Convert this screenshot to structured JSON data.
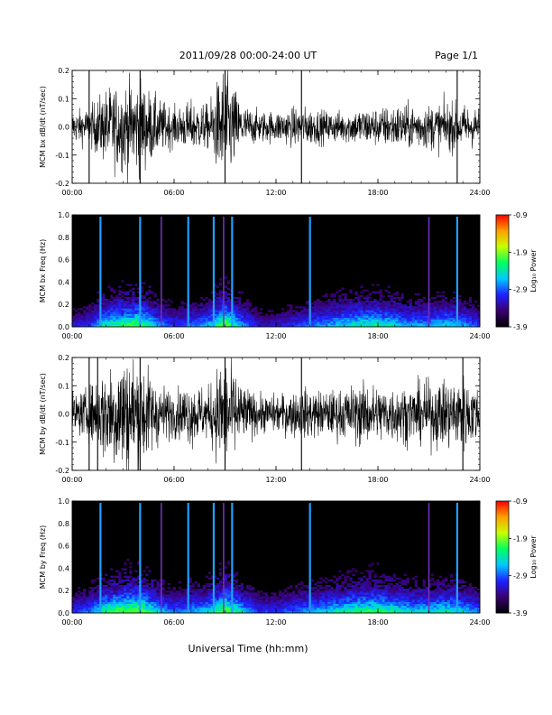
{
  "header": {
    "title": "2011/09/28  00:00-24:00 UT",
    "page": "Page 1/1"
  },
  "footer": {
    "xlabel": "Universal Time (hh:mm)"
  },
  "colorbar": {
    "label": "Log₁₀ Power",
    "ticks": [
      "-0.9",
      "-1.9",
      "-2.9",
      "-3.9"
    ],
    "range": [
      -3.9,
      -0.9
    ],
    "colors": [
      "#000000",
      "#3a0070",
      "#2020ff",
      "#00c8ff",
      "#00ff60",
      "#c8ff00",
      "#ffa000",
      "#ff0000"
    ]
  },
  "chart_data": [
    {
      "type": "line",
      "ylabel": "MCM bx dB/dt (nT/sec)",
      "ylim": [
        -0.2,
        0.2
      ],
      "yticks": [
        "0.2",
        "0.1",
        "0.0",
        "-0.1",
        "-0.2"
      ],
      "xlim": [
        "00:00",
        "24:00"
      ],
      "xticks": [
        "00:00",
        "06:00",
        "12:00",
        "18:00",
        "24:00"
      ],
      "series": [
        {
          "x": [
            "00:00",
            "01:00",
            "02:00",
            "03:00",
            "04:00",
            "05:00",
            "06:00",
            "07:00",
            "08:00",
            "09:00",
            "10:00",
            "11:00",
            "12:00",
            "13:00",
            "14:00",
            "15:00",
            "16:00",
            "17:00",
            "18:00",
            "19:00",
            "20:00",
            "21:00",
            "22:00",
            "23:00",
            "24:00"
          ],
          "amplitude": [
            0.05,
            0.06,
            0.12,
            0.14,
            0.15,
            0.09,
            0.06,
            0.08,
            0.07,
            0.2,
            0.07,
            0.05,
            0.05,
            0.06,
            0.06,
            0.05,
            0.05,
            0.06,
            0.06,
            0.07,
            0.07,
            0.07,
            0.08,
            0.07,
            0.06
          ]
        }
      ],
      "spikes": [
        "01:00",
        "04:00",
        "09:00",
        "13:30",
        "22:40"
      ],
      "grid": false
    },
    {
      "type": "heatmap",
      "ylabel": "MCM bx Freq (Hz)",
      "ylim": [
        0.0,
        1.0
      ],
      "yticks": [
        "1.0",
        "0.8",
        "0.6",
        "0.4",
        "0.2",
        "0.0"
      ],
      "xlim": [
        "00:00",
        "24:00"
      ],
      "xticks": [
        "00:00",
        "06:00",
        "12:00",
        "18:00",
        "24:00"
      ],
      "zlabel": "Log₁₀ Power",
      "zlim": [
        -3.9,
        -0.9
      ],
      "vertical_lines": [
        "01:40",
        "04:00",
        "05:15",
        "06:50",
        "08:20",
        "08:55",
        "09:25",
        "14:00",
        "21:00",
        "22:40"
      ],
      "activity": [
        0.2,
        0.25,
        0.45,
        0.5,
        0.55,
        0.35,
        0.25,
        0.3,
        0.35,
        0.6,
        0.35,
        0.2,
        0.2,
        0.25,
        0.3,
        0.35,
        0.4,
        0.45,
        0.45,
        0.4,
        0.35,
        0.35,
        0.4,
        0.35,
        0.25
      ]
    },
    {
      "type": "line",
      "ylabel": "MCM by dB/dt (nT/sec)",
      "ylim": [
        -0.2,
        0.2
      ],
      "yticks": [
        "0.2",
        "0.1",
        "0.0",
        "-0.1",
        "-0.2"
      ],
      "xlim": [
        "00:00",
        "24:00"
      ],
      "xticks": [
        "00:00",
        "06:00",
        "12:00",
        "18:00",
        "24:00"
      ],
      "series": [
        {
          "x": [
            "00:00",
            "01:00",
            "02:00",
            "03:00",
            "04:00",
            "05:00",
            "06:00",
            "07:00",
            "08:00",
            "09:00",
            "10:00",
            "11:00",
            "12:00",
            "13:00",
            "14:00",
            "15:00",
            "16:00",
            "17:00",
            "18:00",
            "19:00",
            "20:00",
            "21:00",
            "22:00",
            "23:00",
            "24:00"
          ],
          "amplitude": [
            0.06,
            0.08,
            0.16,
            0.2,
            0.18,
            0.1,
            0.07,
            0.1,
            0.08,
            0.2,
            0.09,
            0.06,
            0.06,
            0.07,
            0.08,
            0.07,
            0.08,
            0.1,
            0.09,
            0.09,
            0.09,
            0.1,
            0.11,
            0.12,
            0.08
          ]
        }
      ],
      "spikes": [
        "01:00",
        "01:30",
        "04:00",
        "09:00",
        "13:30",
        "23:00"
      ],
      "grid": false
    },
    {
      "type": "heatmap",
      "ylabel": "MCM by Freq (Hz)",
      "ylim": [
        0.0,
        1.0
      ],
      "yticks": [
        "1.0",
        "0.8",
        "0.6",
        "0.4",
        "0.2",
        "0.0"
      ],
      "xlim": [
        "00:00",
        "24:00"
      ],
      "xticks": [
        "00:00",
        "06:00",
        "12:00",
        "18:00",
        "24:00"
      ],
      "zlabel": "Log₁₀ Power",
      "zlim": [
        -3.9,
        -0.9
      ],
      "vertical_lines": [
        "01:40",
        "04:00",
        "05:15",
        "06:50",
        "08:20",
        "08:55",
        "09:25",
        "14:00",
        "21:00",
        "22:40"
      ],
      "activity": [
        0.25,
        0.3,
        0.5,
        0.55,
        0.6,
        0.4,
        0.3,
        0.35,
        0.4,
        0.6,
        0.4,
        0.25,
        0.25,
        0.3,
        0.35,
        0.4,
        0.45,
        0.5,
        0.5,
        0.45,
        0.4,
        0.4,
        0.45,
        0.4,
        0.3
      ]
    }
  ]
}
